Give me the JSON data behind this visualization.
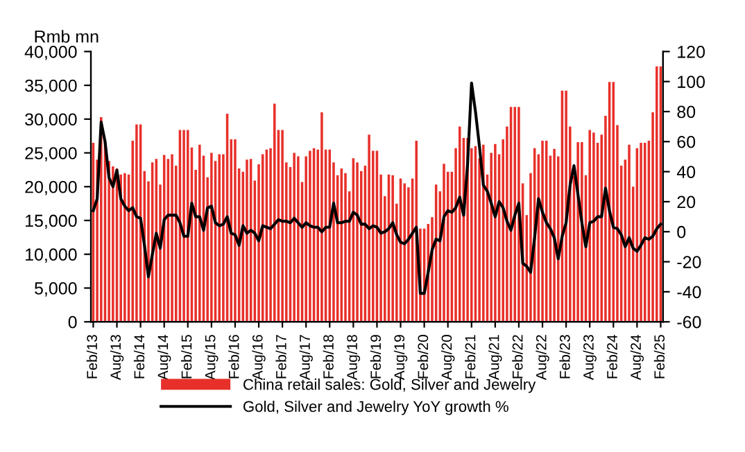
{
  "chart_data": {
    "type": "bar",
    "ylabel": "Rmb mn",
    "categories": [
      "Feb/13",
      null,
      null,
      null,
      null,
      null,
      "Aug/13",
      null,
      null,
      null,
      null,
      null,
      "Feb/14",
      null,
      null,
      null,
      null,
      null,
      "Aug/14",
      null,
      null,
      null,
      null,
      null,
      "Feb/15",
      null,
      null,
      null,
      null,
      null,
      "Aug/15",
      null,
      null,
      null,
      null,
      null,
      "Feb/16",
      null,
      null,
      null,
      null,
      null,
      "Aug/16",
      null,
      null,
      null,
      null,
      null,
      "Feb/17",
      null,
      null,
      null,
      null,
      null,
      "Aug/17",
      null,
      null,
      null,
      null,
      null,
      "Feb/18",
      null,
      null,
      null,
      null,
      null,
      "Aug/18",
      null,
      null,
      null,
      null,
      null,
      "Feb/19",
      null,
      null,
      null,
      null,
      null,
      "Aug/19",
      null,
      null,
      null,
      null,
      null,
      "Feb/20",
      null,
      null,
      null,
      null,
      null,
      "Aug/20",
      null,
      null,
      null,
      null,
      null,
      "Feb/21",
      null,
      null,
      null,
      null,
      null,
      "Aug/21",
      null,
      null,
      null,
      null,
      null,
      "Feb/22",
      null,
      null,
      null,
      null,
      null,
      "Aug/22",
      null,
      null,
      null,
      null,
      null,
      "Feb/23",
      null,
      null,
      null,
      null,
      null,
      "Aug/23",
      null,
      null,
      null,
      null,
      null,
      "Feb/24",
      null,
      null,
      null,
      null,
      null,
      "Aug/24",
      null,
      null,
      null,
      null,
      null,
      "Feb/25"
    ],
    "series": [
      {
        "name": "China retail sales: Gold, Silver and Jewelry",
        "color": "#e8302a",
        "values": [
          26500,
          24000,
          30300,
          26800,
          23800,
          23000,
          22700,
          21800,
          22000,
          21800,
          26800,
          29200,
          29200,
          22300,
          20800,
          23600,
          24100,
          20300,
          24700,
          24100,
          24800,
          23100,
          28400,
          28400,
          28400,
          25800,
          22500,
          26200,
          24600,
          21400,
          25000,
          23800,
          24800,
          24800,
          30800,
          27000,
          27000,
          22700,
          22200,
          24000,
          24100,
          20900,
          23300,
          24800,
          25500,
          25700,
          32300,
          28400,
          28400,
          23600,
          22900,
          25000,
          24500,
          20700,
          24500,
          25300,
          25700,
          25500,
          31000,
          25500,
          25500,
          23600,
          21700,
          22700,
          22000,
          19300,
          24200,
          23600,
          22300,
          23100,
          27700,
          25300,
          25300,
          21800,
          18600,
          21800,
          21700,
          17500,
          21200,
          20500,
          19900,
          21200,
          26800,
          13800,
          13800,
          14500,
          15500,
          20300,
          19300,
          23400,
          22200,
          22200,
          25700,
          28900,
          27200,
          27200,
          25700,
          26000,
          24200,
          26200,
          21800,
          25000,
          26300,
          24800,
          27000,
          28900,
          31800,
          31800,
          31800,
          20500,
          15800,
          22000,
          25700,
          24800,
          26800,
          26800,
          24600,
          25600,
          24500,
          34200,
          34200,
          28900,
          21600,
          26600,
          26600,
          21700,
          28400,
          28000,
          26500,
          27700,
          30500,
          35500,
          35500,
          29100,
          23100,
          24000,
          26200,
          20000,
          25700,
          26500,
          26500,
          26800,
          31000,
          37800,
          37800
        ]
      },
      {
        "name": "Gold, Silver and Jewelry YoY growth %",
        "type": "line",
        "axis": "y2",
        "color": "#000000",
        "values": [
          14,
          22,
          73,
          60,
          36,
          30,
          41,
          22,
          17,
          14,
          16,
          10,
          9,
          -9,
          -30,
          -15,
          -1,
          -11,
          8,
          11,
          11,
          11,
          6,
          -3,
          -3,
          19,
          10,
          10,
          1,
          16,
          17,
          6,
          4,
          5,
          10,
          -1,
          -2,
          -9,
          4,
          -1,
          1,
          -1,
          -6,
          4,
          3,
          2,
          5,
          8,
          7,
          7,
          6,
          9,
          6,
          3,
          6,
          4,
          3,
          3,
          0,
          3,
          3,
          19,
          6,
          6,
          7,
          7,
          13,
          11,
          5,
          5,
          2,
          4,
          3,
          -1,
          0,
          2,
          6,
          -2,
          -7,
          -8,
          -5,
          -1,
          3,
          -41,
          -41,
          -27,
          -12,
          -5,
          -6,
          10,
          14,
          13,
          16,
          23,
          11,
          45,
          99,
          80,
          57,
          31,
          27,
          19,
          10,
          20,
          16,
          7,
          1,
          11,
          19,
          -21,
          -23,
          -27,
          -4,
          22,
          13,
          6,
          2,
          -4,
          -18,
          -3,
          6,
          31,
          44,
          25,
          6,
          -10,
          6,
          7,
          10,
          10,
          29,
          14,
          3,
          2,
          -2,
          -10,
          -4,
          -11,
          -13,
          -9,
          -4,
          -5,
          -3,
          2,
          5
        ]
      }
    ],
    "ylim": [
      0,
      40000
    ],
    "yticks": [
      0,
      {
        "value": 5000,
        "label": "5,000"
      },
      {
        "value": 10000,
        "label": "10,000"
      },
      {
        "value": 15000,
        "label": "15,000"
      },
      {
        "value": 20000,
        "label": "20,000"
      },
      {
        "value": 25000,
        "label": "25,000"
      },
      {
        "value": 30000,
        "label": "30,000"
      },
      {
        "value": 35000,
        "label": "35,000"
      },
      {
        "value": 40000,
        "label": "40,000"
      }
    ],
    "y2lim": [
      -60,
      120
    ],
    "y2ticks": [
      -60,
      -40,
      -20,
      0,
      20,
      40,
      60,
      80,
      100,
      120
    ],
    "legend": "bottom",
    "grid": false,
    "marker": "none",
    "line_style": "solid"
  }
}
